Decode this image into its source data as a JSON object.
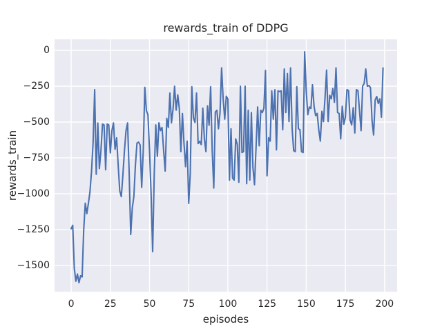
{
  "figure": {
    "title": "rewards_train of DDPG",
    "xlabel": "episodes",
    "ylabel": "rewards_train",
    "background_color": "#ffffff",
    "axes_background_color": "#eaeaf2",
    "grid_color": "#ffffff",
    "line_color": "#4c72b0",
    "text_color": "#262626"
  },
  "chart_data": {
    "type": "line",
    "title": "rewards_train of DDPG",
    "xlabel": "episodes",
    "ylabel": "rewards_train",
    "grid": true,
    "legend": false,
    "x_ticks": [
      0,
      25,
      50,
      75,
      100,
      125,
      150,
      175,
      200
    ],
    "x_tick_labels": [
      "0",
      "25",
      "50",
      "75",
      "100",
      "125",
      "150",
      "175",
      "200"
    ],
    "y_ticks": [
      0,
      -250,
      -500,
      -750,
      -1000,
      -1250,
      -1500
    ],
    "y_tick_labels": [
      "0",
      "−250",
      "−500",
      "−750",
      "−1000",
      "−1250",
      "−1500"
    ],
    "xlim": [
      -10.6,
      208.0
    ],
    "ylim": [
      -1683,
      77
    ],
    "series": [
      {
        "name": "rewards_train",
        "color": "#4c72b0",
        "x_start": 0,
        "x_step": 1,
        "y": [
          -1244,
          -1220,
          -1520,
          -1610,
          -1560,
          -1620,
          -1572,
          -1580,
          -1252,
          -1066,
          -1139,
          -1066,
          -986,
          -842,
          -640,
          -274,
          -864,
          -506,
          -825,
          -700,
          -514,
          -520,
          -833,
          -514,
          -520,
          -715,
          -560,
          -506,
          -690,
          -610,
          -800,
          -980,
          -1020,
          -870,
          -700,
          -560,
          -506,
          -850,
          -1284,
          -1100,
          -1020,
          -800,
          -647,
          -640,
          -660,
          -956,
          -700,
          -258,
          -420,
          -449,
          -700,
          -1000,
          -1404,
          -866,
          -520,
          -739,
          -505,
          -560,
          -538,
          -698,
          -842,
          -474,
          -538,
          -298,
          -506,
          -410,
          -250,
          -417,
          -310,
          -403,
          -706,
          -441,
          -649,
          -811,
          -633,
          -1067,
          -860,
          -254,
          -470,
          -503,
          -298,
          -650,
          -634,
          -657,
          -403,
          -617,
          -706,
          -387,
          -522,
          -254,
          -700,
          -960,
          -430,
          -418,
          -547,
          -434,
          -122,
          -340,
          -480,
          -320,
          -340,
          -905,
          -547,
          -890,
          -905,
          -617,
          -657,
          -920,
          -250,
          -713,
          -706,
          -250,
          -930,
          -418,
          -905,
          -434,
          -818,
          -937,
          -672,
          -395,
          -666,
          -418,
          -434,
          -403,
          -140,
          -875,
          -610,
          -633,
          -283,
          -480,
          -275,
          -694,
          -283,
          -287,
          -283,
          -554,
          -130,
          -434,
          -162,
          -497,
          -122,
          -547,
          -700,
          -706,
          -254,
          -547,
          -553,
          -706,
          -713,
          -10,
          -283,
          -449,
          -395,
          -406,
          -240,
          -390,
          -455,
          -440,
          -554,
          -633,
          -425,
          -497,
          -330,
          -138,
          -497,
          -314,
          -338,
          -266,
          -362,
          -122,
          -434,
          -440,
          -617,
          -390,
          -515,
          -466,
          -274,
          -280,
          -486,
          -520,
          -400,
          -576,
          -274,
          -280,
          -420,
          -560,
          -250,
          -230,
          -130,
          -250,
          -245,
          -260,
          -490,
          -590,
          -346,
          -322,
          -370,
          -338,
          -466,
          -123
        ]
      }
    ]
  }
}
